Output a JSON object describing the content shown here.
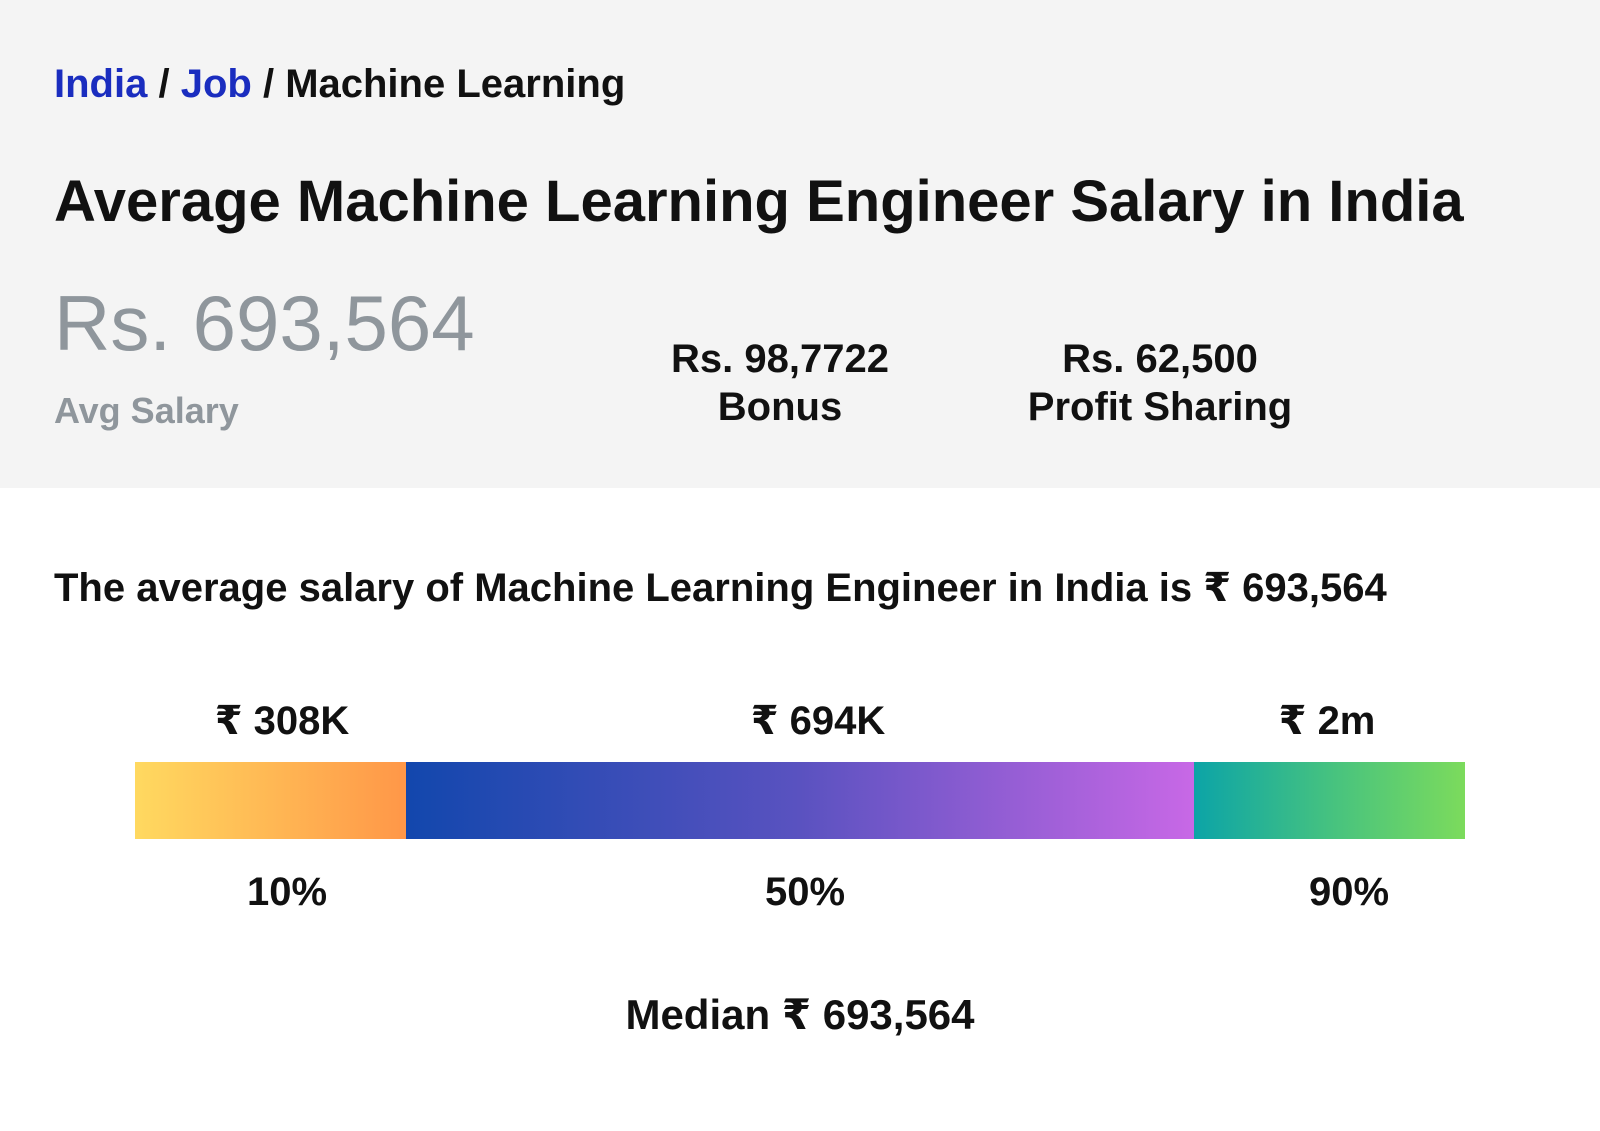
{
  "breadcrumb": {
    "items": [
      {
        "label": "India",
        "link": true
      },
      {
        "label": "Job",
        "link": true
      },
      {
        "label": "Machine Learning",
        "link": false
      }
    ],
    "separator": "/"
  },
  "page_title": "Average Machine Learning Engineer Salary in India",
  "avg_salary": {
    "value": "Rs. 693,564",
    "label": "Avg Salary"
  },
  "stats": {
    "bonus": {
      "value": "Rs. 98,7722",
      "label": "Bonus"
    },
    "profit_sharing": {
      "value": "Rs. 62,500",
      "label": "Profit Sharing"
    }
  },
  "summary_text": "The average salary of Machine Learning Engineer in India is ₹ 693,564",
  "salary_range": {
    "segments": [
      {
        "amount": "₹ 308K",
        "percentile": "10%",
        "width_fraction": 0.204
      },
      {
        "amount": "₹ 694K",
        "percentile": "50%",
        "width_fraction": 0.592
      },
      {
        "amount": "₹ 2m",
        "percentile": "90%",
        "width_fraction": 0.204
      }
    ],
    "median": "Median ₹ 693,564"
  },
  "colors": {
    "link": "#1a2dbf",
    "muted": "#8f969c",
    "header_bg": "#f4f4f4",
    "low_gradient": [
      "#ffd960",
      "#ff9748"
    ],
    "mid_gradient": [
      "#1247ad",
      "#5a52c0",
      "#c868e6"
    ],
    "high_gradient": [
      "#0ca4a7",
      "#45c280",
      "#7cdb5c"
    ]
  }
}
